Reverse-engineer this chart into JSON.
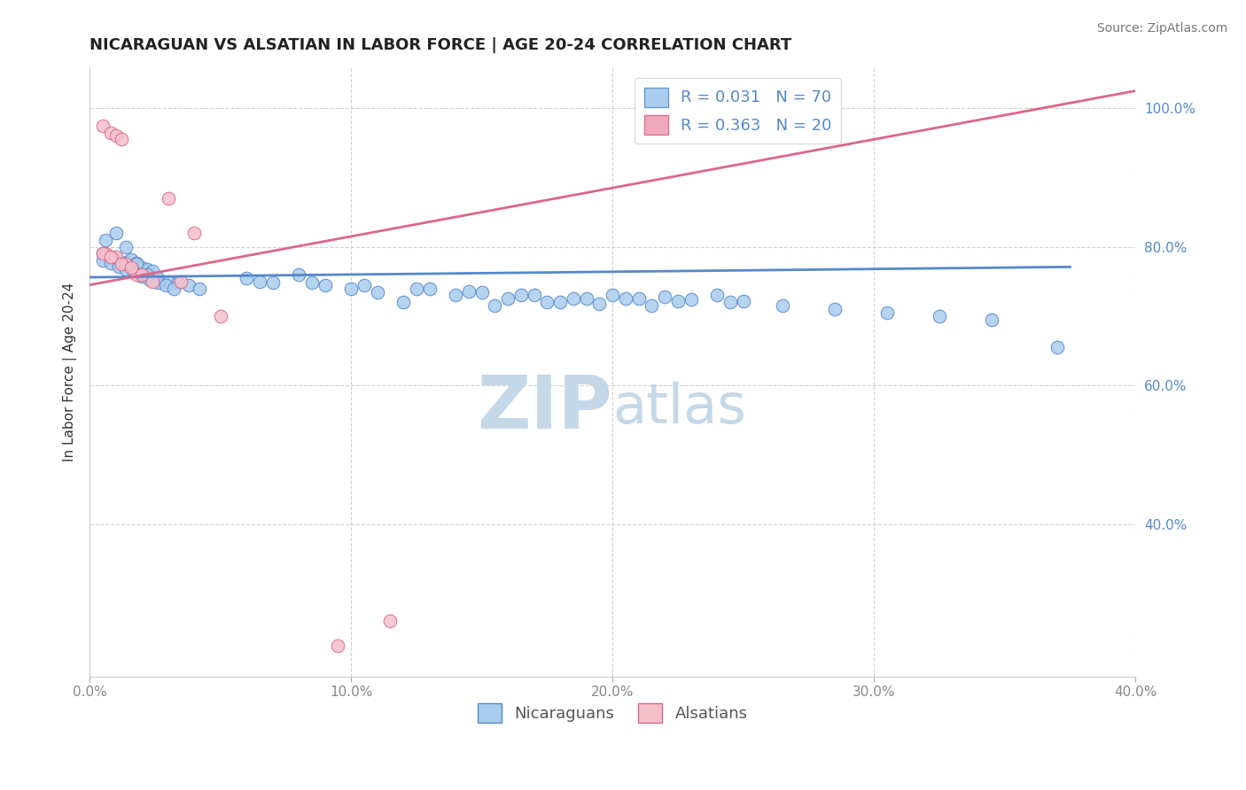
{
  "title": "NICARAGUAN VS ALSATIAN IN LABOR FORCE | AGE 20-24 CORRELATION CHART",
  "source_text": "Source: ZipAtlas.com",
  "ylabel": "In Labor Force | Age 20-24",
  "legend_labels": [
    "Nicaraguans",
    "Alsatians"
  ],
  "legend_r_n": [
    {
      "r": 0.031,
      "n": 70,
      "fill": "#aaccee",
      "edge": "#6699cc"
    },
    {
      "r": 0.363,
      "n": 20,
      "fill": "#f0aabb",
      "edge": "#e07090"
    }
  ],
  "blue_color": "#5588cc",
  "pink_color": "#dd6688",
  "blue_fill": "#aaccee",
  "pink_fill": "#f5c0cc",
  "xlim": [
    0.0,
    0.4
  ],
  "ylim": [
    0.18,
    1.06
  ],
  "xticks": [
    0.0,
    0.1,
    0.2,
    0.3,
    0.4
  ],
  "yticks": [
    0.4,
    0.6,
    0.8,
    1.0
  ],
  "ytick_labels": [
    "40.0%",
    "60.0%",
    "80.0%",
    "100.0%"
  ],
  "xtick_labels": [
    "0.0%",
    "10.0%",
    "20.0%",
    "30.0%",
    "40.0%"
  ],
  "watermark_zip": "ZIP",
  "watermark_atlas": "atlas",
  "blue_scatter_x": [
    0.005,
    0.008,
    0.01,
    0.012,
    0.014,
    0.016,
    0.018,
    0.02,
    0.022,
    0.024,
    0.006,
    0.01,
    0.014,
    0.018,
    0.022,
    0.026,
    0.03,
    0.034,
    0.038,
    0.042,
    0.005,
    0.008,
    0.011,
    0.014,
    0.017,
    0.02,
    0.023,
    0.026,
    0.029,
    0.032,
    0.06,
    0.08,
    0.1,
    0.12,
    0.14,
    0.16,
    0.18,
    0.2,
    0.22,
    0.24,
    0.07,
    0.09,
    0.11,
    0.13,
    0.15,
    0.17,
    0.19,
    0.21,
    0.23,
    0.25,
    0.065,
    0.085,
    0.105,
    0.125,
    0.145,
    0.165,
    0.185,
    0.205,
    0.225,
    0.245,
    0.265,
    0.285,
    0.305,
    0.325,
    0.345,
    0.195,
    0.215,
    0.175,
    0.155,
    0.37
  ],
  "blue_scatter_y": [
    0.79,
    0.785,
    0.78,
    0.775,
    0.778,
    0.782,
    0.776,
    0.77,
    0.768,
    0.765,
    0.81,
    0.82,
    0.8,
    0.775,
    0.76,
    0.755,
    0.75,
    0.748,
    0.745,
    0.74,
    0.78,
    0.776,
    0.772,
    0.768,
    0.764,
    0.758,
    0.752,
    0.748,
    0.744,
    0.74,
    0.755,
    0.76,
    0.74,
    0.72,
    0.73,
    0.725,
    0.72,
    0.73,
    0.728,
    0.73,
    0.748,
    0.745,
    0.735,
    0.74,
    0.735,
    0.73,
    0.725,
    0.726,
    0.724,
    0.722,
    0.75,
    0.748,
    0.744,
    0.74,
    0.736,
    0.73,
    0.725,
    0.726,
    0.722,
    0.72,
    0.715,
    0.71,
    0.705,
    0.7,
    0.695,
    0.718,
    0.715,
    0.72,
    0.715,
    0.655
  ],
  "pink_scatter_x": [
    0.005,
    0.008,
    0.01,
    0.012,
    0.006,
    0.01,
    0.014,
    0.018,
    0.005,
    0.008,
    0.012,
    0.016,
    0.02,
    0.024,
    0.04,
    0.05,
    0.03,
    0.035,
    0.095,
    0.115
  ],
  "pink_scatter_y": [
    0.975,
    0.965,
    0.96,
    0.955,
    0.79,
    0.785,
    0.775,
    0.76,
    0.79,
    0.785,
    0.775,
    0.77,
    0.76,
    0.75,
    0.82,
    0.7,
    0.87,
    0.75,
    0.225,
    0.26
  ],
  "blue_line_x": [
    0.0,
    0.375
  ],
  "blue_line_y": [
    0.756,
    0.771
  ],
  "pink_line_x": [
    0.0,
    0.4
  ],
  "pink_line_y": [
    0.745,
    1.025
  ],
  "title_fontsize": 13,
  "source_fontsize": 10,
  "axis_label_fontsize": 11,
  "tick_fontsize": 11,
  "legend_fontsize": 13,
  "watermark_color_zip": "#c5d8e8",
  "watermark_color_atlas": "#c5d8e8",
  "watermark_fontsize": 60,
  "grid_color": "#cccccc",
  "marker_size": 110
}
